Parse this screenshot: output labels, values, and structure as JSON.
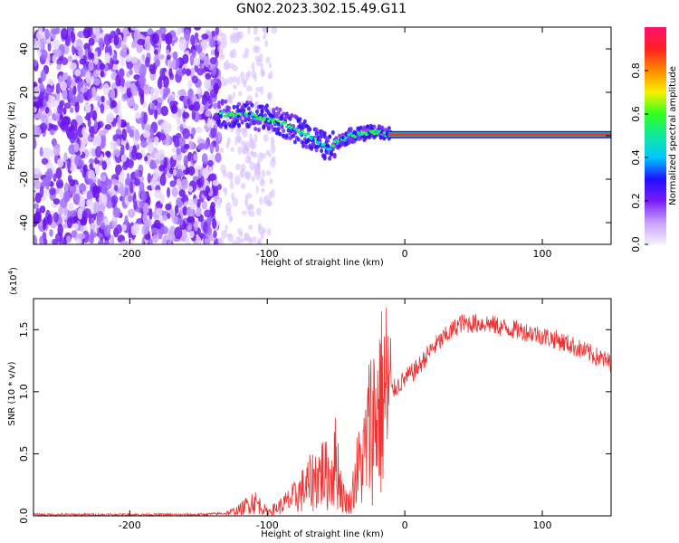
{
  "title": "GN02.2023.302.15.49.G11",
  "colors": {
    "specgram_purple": "#6a1cf0",
    "snr_line": "#ee3333",
    "colorbar": [
      "#f4f0ff",
      "#c8a0ff",
      "#7a1cf8",
      "#2010ff",
      "#00c8ff",
      "#10e8a0",
      "#30ff20",
      "#f8f000",
      "#ff8800",
      "#ff2020",
      "#ff1070"
    ]
  },
  "chart_data": [
    {
      "type": "heatmap",
      "name": "spectrogram",
      "xlabel": "Height of straight line (km)",
      "ylabel": "Frequency (Hz)",
      "xlim": [
        -270,
        150
      ],
      "ylim": [
        -50,
        50
      ],
      "x_ticks": [
        -200,
        -100,
        0,
        100
      ],
      "y_ticks": [
        -40,
        -20,
        0,
        20,
        40
      ],
      "colorbar": {
        "label": "Normalized spectral amplitude",
        "range": [
          0.0,
          1.0
        ],
        "ticks": [
          "0.0",
          "0.2",
          "0.4",
          "0.6",
          "0.8"
        ]
      },
      "features": [
        {
          "desc": "broadband noise",
          "x_range": [
            -270,
            -135
          ],
          "y_range": [
            -50,
            50
          ],
          "amplitude": 0.2
        },
        {
          "desc": "signal track",
          "points": [
            [
              -135,
              10
            ],
            [
              -120,
              10
            ],
            [
              -100,
              8
            ],
            [
              -90,
              6
            ],
            [
              -80,
              3
            ],
            [
              -70,
              0
            ],
            [
              -60,
              -4
            ],
            [
              -55,
              -6
            ],
            [
              -50,
              -3
            ],
            [
              -45,
              -2
            ],
            [
              -40,
              0
            ],
            [
              -30,
              1
            ],
            [
              -20,
              2
            ],
            [
              -15,
              1
            ],
            [
              -10,
              0.5
            ],
            [
              0,
              0.5
            ],
            [
              150,
              0.5
            ]
          ],
          "amplitude": 0.95
        }
      ]
    },
    {
      "type": "line",
      "name": "snr",
      "xlabel": "Height of straight line (km)",
      "ylabel": "SNR (10 * v/v)",
      "y_scale_label": "(x10",
      "y_scale_exp": "4",
      "y_scale_close": ")",
      "xlim": [
        -270,
        150
      ],
      "ylim": [
        0,
        1.75
      ],
      "x_ticks": [
        -200,
        -100,
        0,
        100
      ],
      "y_ticks": [
        "0.0",
        "0.5",
        "1.0",
        "1.5"
      ],
      "series": [
        {
          "x": [
            -270,
            -200,
            -150,
            -130,
            -120,
            -110,
            -105,
            -100,
            -90,
            -80,
            -70,
            -60,
            -55,
            -50,
            -45,
            -40,
            -35,
            -30,
            -25,
            -20,
            -15,
            -10,
            -5,
            0,
            10,
            20,
            30,
            40,
            50,
            60,
            70,
            80,
            90,
            100,
            110,
            120,
            130,
            140,
            150
          ],
          "y": [
            0.01,
            0.01,
            0.01,
            0.02,
            0.05,
            0.12,
            0.08,
            0.03,
            0.08,
            0.15,
            0.25,
            0.35,
            0.3,
            0.45,
            0.15,
            0.1,
            0.35,
            0.45,
            0.75,
            0.85,
            0.95,
            1.0,
            1.05,
            1.1,
            1.2,
            1.35,
            1.45,
            1.55,
            1.55,
            1.55,
            1.52,
            1.5,
            1.48,
            1.45,
            1.42,
            1.38,
            1.33,
            1.28,
            1.23
          ]
        }
      ]
    }
  ]
}
